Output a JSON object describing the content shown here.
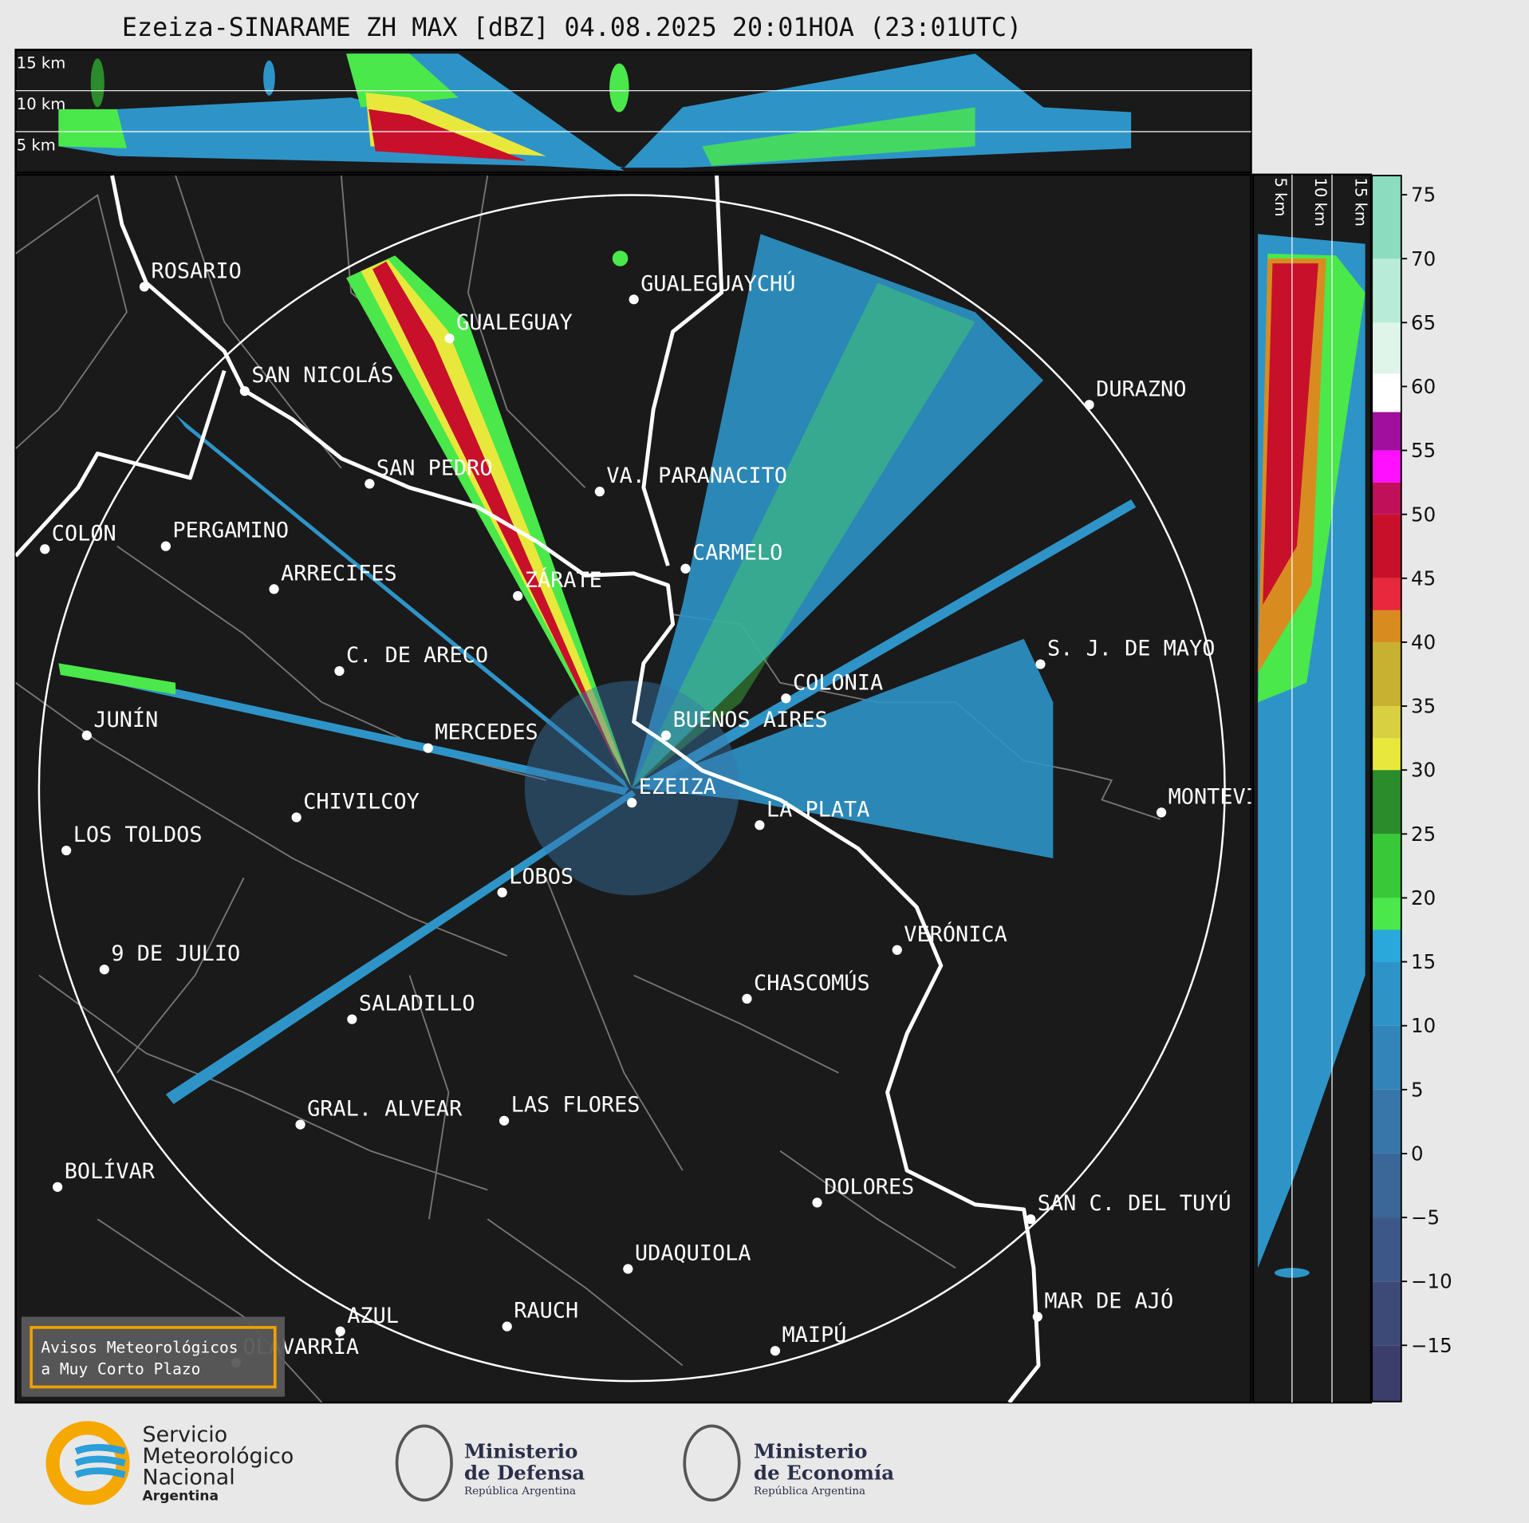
{
  "title": "Ezeiza-SINARAME ZH MAX [dBZ] 04.08.2025 20:01HOA (23:01UTC)",
  "top_panel": {
    "height_labels": [
      "15 km",
      "10 km",
      "5 km"
    ]
  },
  "side_panel": {
    "height_labels": [
      "5 km",
      "10 km",
      "15 km"
    ]
  },
  "cities": [
    "ROSARIO",
    "GUALEGUAYCHÚ",
    "GUALEGUAY",
    "SAN NICOLÁS",
    "DURAZNO",
    "SAN PEDRO",
    "VA. PARANACITO",
    "COLON",
    "PERGAMINO",
    "CARMELO",
    "ARRECIFES",
    "ZÁRATE",
    "S. J. DE MAYO",
    "C. DE ARECO",
    "COLONIA",
    "BUENOS AIRES",
    "JUNÍN",
    "MERCEDES",
    "EZEIZA",
    "MONTEVIDEO",
    "CHIVILCOY",
    "LA PLATA",
    "LOS TOLDOS",
    "LOBOS",
    "VERÓNICA",
    "9 DE JULIO",
    "CHASCOMÚS",
    "SALADILLO",
    "GRAL. ALVEAR",
    "LAS FLORES",
    "BOLÍVAR",
    "DOLORES",
    "SAN C. DEL TUYÚ",
    "UDAQUIOLA",
    "MAR DE AJÓ",
    "RAUCH",
    "AZUL",
    "OLAVARRÍA",
    "MAIPÚ"
  ],
  "badge": [
    "Avisos Meteorológicos",
    "a Muy Corto Plazo"
  ],
  "colorbar": {
    "lim": [
      -19.4,
      76.5
    ],
    "ticks": [
      {
        "value": -15,
        "label": "−15"
      },
      {
        "value": -10,
        "label": "−10"
      },
      {
        "value": -5,
        "label": "−5"
      },
      0,
      5,
      10,
      15,
      20,
      25,
      30,
      35,
      40,
      45,
      50,
      55,
      60,
      65,
      70,
      75
    ],
    "levels": [
      -19.4,
      -15,
      -10,
      -5,
      0,
      5,
      10,
      15,
      17.5,
      20,
      25,
      30,
      32.5,
      35,
      40,
      42.5,
      45,
      50,
      52.5,
      55,
      58,
      61,
      65,
      70,
      76.5
    ],
    "colors": [
      "#3b3d6b",
      "#3d4a78",
      "#3d5888",
      "#3b6698",
      "#3875a8",
      "#3384b8",
      "#2e94c8",
      "#2aa8dc",
      "#4ae84a",
      "#38c838",
      "#2a8c2a",
      "#e8e83c",
      "#d8d040",
      "#c8b030",
      "#d88c20",
      "#e8283c",
      "#c8102a",
      "#c0105a",
      "#ff10ff",
      "#a0109c",
      "#ffffff",
      "#dff5ea",
      "#b8ecd8",
      "#8cdcc0"
    ]
  },
  "logos": {
    "smn": [
      "Servicio",
      "Meteorológico",
      "Nacional",
      "Argentina"
    ],
    "defensa": [
      "Ministerio",
      "de Defensa",
      "República Argentina"
    ],
    "economia": [
      "Ministerio",
      "de Economía",
      "República Argentina"
    ]
  }
}
